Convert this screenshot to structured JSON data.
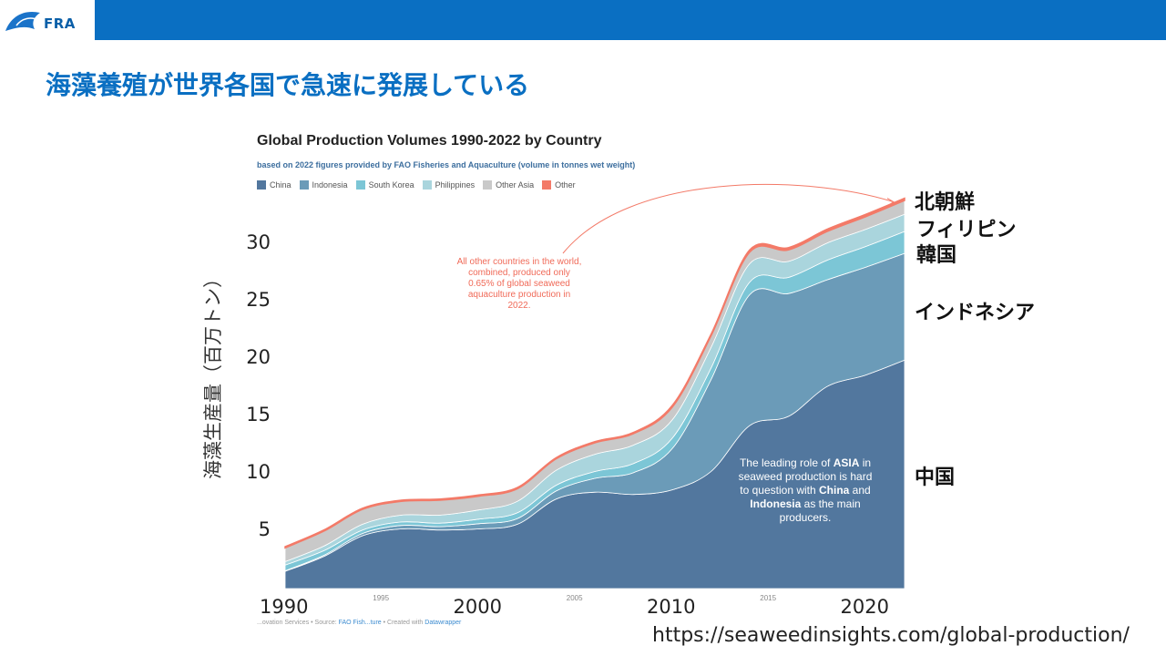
{
  "header": {
    "logo_text": "FRA"
  },
  "page_title": "海藻養殖が世界各国で急速に発展している",
  "chart_data": {
    "type": "area",
    "title": "Global Production Volumes 1990-2022 by Country",
    "subtitle": "based on 2022 figures provided by FAO Fisheries and Aquaculture (volume in tonnes wet weight)",
    "ylabel": "海藻生産量（百万トン）",
    "ylim": [
      0,
      32
    ],
    "xlim": [
      1990,
      2022
    ],
    "stacked": true,
    "y_ticks": [
      "5",
      "10",
      "15",
      "20",
      "25",
      "30"
    ],
    "x_ticks_major": [
      "1990",
      "2000",
      "2010",
      "2020"
    ],
    "x_ticks_minor": [
      "1995",
      "2005",
      "2015"
    ],
    "x": [
      1990,
      1992,
      1994,
      1996,
      1998,
      2000,
      2002,
      2004,
      2006,
      2008,
      2010,
      2012,
      2014,
      2016,
      2018,
      2020,
      2022
    ],
    "series": [
      {
        "name": "China",
        "color": "#52779e",
        "values": [
          1.5,
          2.8,
          4.6,
          5.2,
          5.1,
          5.2,
          5.6,
          7.8,
          8.4,
          8.2,
          8.6,
          10.2,
          14.2,
          15.0,
          17.6,
          18.6,
          19.9
        ]
      },
      {
        "name": "Indonesia",
        "color": "#6b9bb8",
        "values": [
          0.05,
          0.1,
          0.2,
          0.3,
          0.3,
          0.45,
          0.5,
          0.7,
          1.2,
          1.9,
          3.6,
          8.0,
          11.4,
          10.7,
          9.3,
          9.4,
          9.3
        ]
      },
      {
        "name": "South Korea",
        "color": "#7cc6d6",
        "values": [
          0.5,
          0.4,
          0.3,
          0.3,
          0.3,
          0.4,
          0.5,
          0.5,
          0.6,
          0.8,
          0.9,
          1.0,
          1.1,
          1.4,
          1.7,
          1.8,
          1.9
        ]
      },
      {
        "name": "Philippines",
        "color": "#aad5dd",
        "values": [
          0.3,
          0.4,
          0.5,
          0.6,
          0.7,
          0.8,
          1.0,
          1.3,
          1.5,
          1.6,
          1.6,
          1.8,
          1.6,
          1.4,
          1.5,
          1.5,
          1.5
        ]
      },
      {
        "name": "Other Asia",
        "color": "#c9c9c9",
        "values": [
          1.2,
          1.3,
          1.3,
          1.2,
          1.3,
          1.2,
          1.1,
          1.0,
          1.0,
          1.0,
          1.1,
          1.0,
          1.0,
          1.0,
          1.0,
          1.1,
          1.2
        ]
      },
      {
        "name": "Other",
        "color": "#f37a68",
        "values": [
          0.1,
          0.1,
          0.1,
          0.1,
          0.1,
          0.1,
          0.1,
          0.1,
          0.1,
          0.1,
          0.15,
          0.15,
          0.2,
          0.2,
          0.2,
          0.2,
          0.2
        ]
      }
    ],
    "annotations": {
      "other_countries": "All other countries in the world, combined, produced only 0.65% of global seaweed aquaculture production in 2022.",
      "asia_line1": "The leading role of",
      "asia_bold1": "ASIA",
      "asia_line2": " in seaweed production is hard to question with ",
      "asia_bold2": "China",
      "asia_line3": " and ",
      "asia_bold3": "Indonesia",
      "asia_line4": " as the main producers."
    },
    "legend_position": "top-left",
    "grid": false
  },
  "country_labels": {
    "north_korea": "北朝鮮",
    "philippines": "フィリピン",
    "korea": "韓国",
    "indonesia": "インドネシア",
    "china": "中国"
  },
  "credit": {
    "prefix": "...ovation Services • Source: ",
    "source_link": "FAO Fish...ture",
    "middle": " • Created with ",
    "tool_link": "Datawrapper"
  },
  "source_url": "https://seaweedinsights.com/global-production/"
}
